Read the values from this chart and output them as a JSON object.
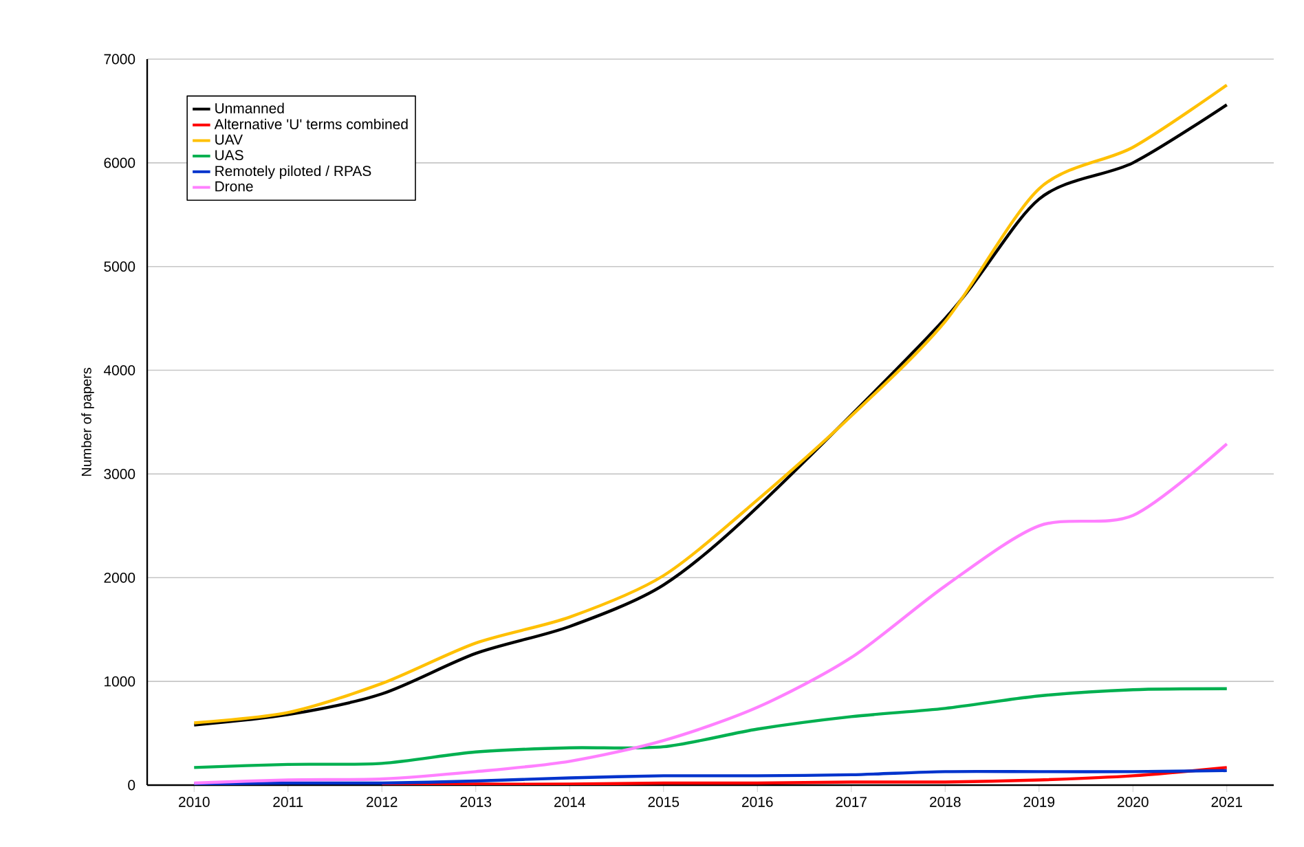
{
  "chart_data": {
    "type": "line",
    "ylabel": "Number of papers",
    "x": [
      2010,
      2011,
      2012,
      2013,
      2014,
      2015,
      2016,
      2017,
      2018,
      2019,
      2020,
      2021
    ],
    "xlim": [
      2009.5,
      2021.5
    ],
    "xticks": [
      2010,
      2011,
      2012,
      2013,
      2014,
      2015,
      2016,
      2017,
      2018,
      2019,
      2020,
      2021
    ],
    "ylim": [
      0,
      7000
    ],
    "yticks": [
      0,
      1000,
      2000,
      3000,
      4000,
      5000,
      6000,
      7000
    ],
    "grid": "y",
    "legend": "top left",
    "marker": "none",
    "line_style": "solid",
    "series": [
      {
        "name": "Unmanned",
        "color": "#000000",
        "values": [
          580,
          680,
          880,
          1270,
          1530,
          1930,
          2680,
          null,
          4500,
          5650,
          6000,
          6560
        ]
      },
      {
        "name": "Alternative 'U' terms combined",
        "color": "#ff0000",
        "values": [
          null,
          null,
          10,
          10,
          10,
          20,
          20,
          30,
          30,
          50,
          90,
          170
        ]
      },
      {
        "name": "UAV",
        "color": "#ffc000",
        "values": [
          600,
          700,
          980,
          1370,
          1620,
          2020,
          2750,
          3560,
          4470,
          5750,
          6150,
          6750
        ]
      },
      {
        "name": "UAS",
        "color": "#00b050",
        "values": [
          170,
          200,
          210,
          320,
          360,
          370,
          540,
          660,
          740,
          860,
          920,
          930
        ]
      },
      {
        "name": "Remotely piloted / RPAS",
        "color": "#0033cc",
        "values": [
          10,
          20,
          20,
          40,
          70,
          90,
          90,
          100,
          130,
          130,
          130,
          140
        ]
      },
      {
        "name": "Drone",
        "color": "#ff80ff",
        "values": [
          20,
          50,
          60,
          130,
          230,
          430,
          750,
          1230,
          1920,
          2500,
          2600,
          3290
        ]
      }
    ]
  }
}
